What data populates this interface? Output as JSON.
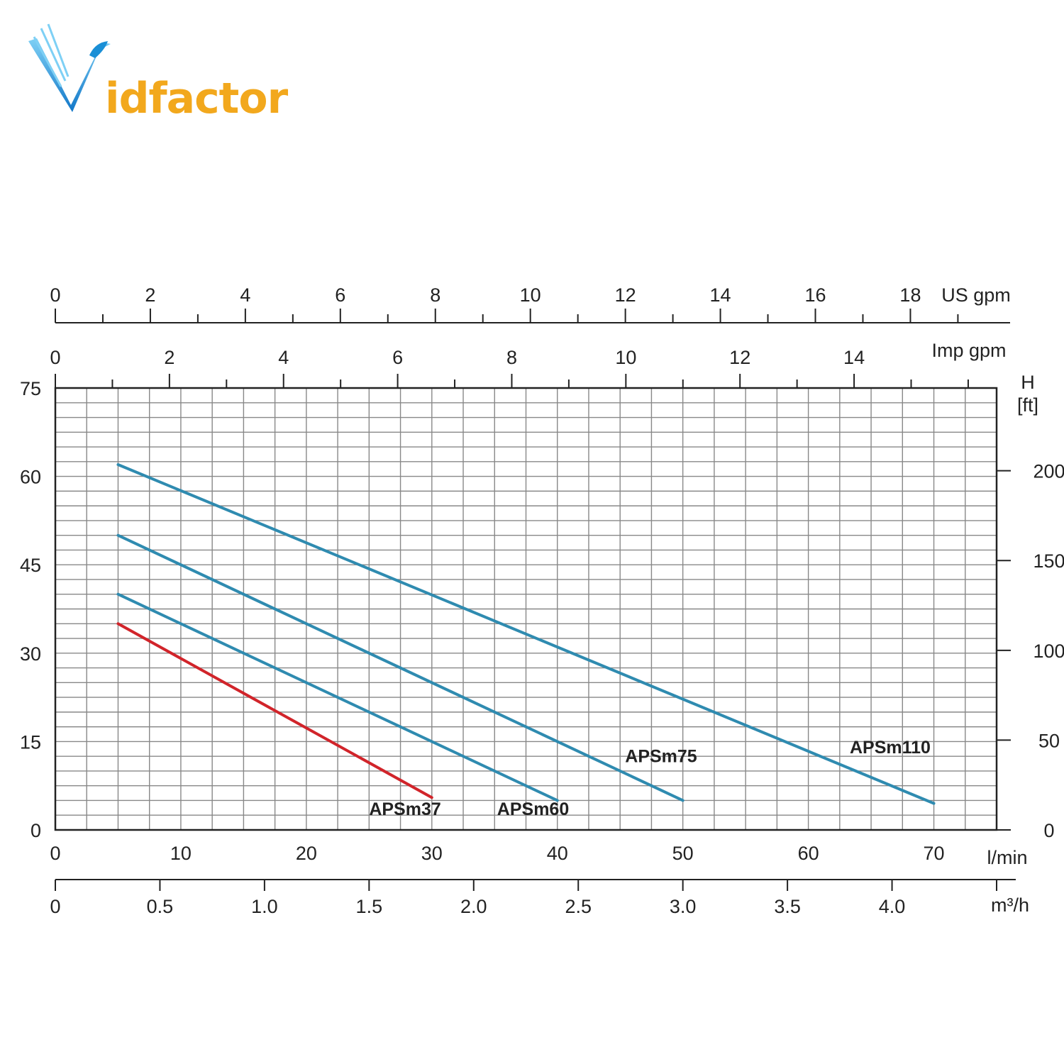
{
  "logo": {
    "brand_text": "idfactor"
  },
  "colors": {
    "line_blue": "#2f8bb0",
    "line_red": "#d1242a",
    "grid": "#888888",
    "axis": "#222222",
    "logo_blue": "#1a8fd6",
    "logo_orange": "#f2a81d"
  },
  "chart_data": {
    "type": "line",
    "grid": true,
    "xlim": [
      0,
      75
    ],
    "ylim": [
      0,
      75
    ],
    "x_axis_label": "l/min",
    "x_ticks": [
      0,
      10,
      20,
      30,
      40,
      50,
      60,
      70
    ],
    "y_ticks_left": [
      0,
      15,
      30,
      45,
      60,
      75
    ],
    "right_axis": {
      "label_line1": "H",
      "label_line2": "[ft]",
      "ticks": [
        0,
        50,
        100,
        150,
        200
      ],
      "per_unit": 0.3048
    },
    "m3h_axis": {
      "label": "m³/h",
      "ticks": [
        "0",
        "0.5",
        "1.0",
        "1.5",
        "2.0",
        "2.5",
        "3.0",
        "3.5",
        "4.0"
      ],
      "factor_lmin": 16.6667
    },
    "us_gpm_axis": {
      "label": "US gpm",
      "ticks": [
        0,
        2,
        4,
        6,
        8,
        10,
        12,
        14,
        16,
        18
      ],
      "factor_lmin": 3.785
    },
    "imp_gpm_axis": {
      "label": "Imp gpm",
      "ticks": [
        0,
        2,
        4,
        6,
        8,
        10,
        12,
        14
      ],
      "factor_lmin": 4.546
    },
    "series": [
      {
        "name": "APSm37",
        "color": "#d1242a",
        "x": [
          5,
          30
        ],
        "y": [
          35,
          5.5
        ]
      },
      {
        "name": "APSm60",
        "color": "#2f8bb0",
        "x": [
          5,
          40
        ],
        "y": [
          40,
          5
        ]
      },
      {
        "name": "APSm75",
        "color": "#2f8bb0",
        "x": [
          5,
          50
        ],
        "y": [
          50,
          5
        ]
      },
      {
        "name": "APSm110",
        "color": "#2f8bb0",
        "x": [
          5,
          70
        ],
        "y": [
          62,
          4.5
        ]
      }
    ],
    "series_labels": [
      {
        "name": "APSm37",
        "x": 25,
        "y": 2.5
      },
      {
        "name": "APSm60",
        "x": 35.2,
        "y": 2.5
      },
      {
        "name": "APSm75",
        "x": 45.4,
        "y": 11.5
      },
      {
        "name": "APSm110",
        "x": 63.3,
        "y": 13
      }
    ]
  }
}
